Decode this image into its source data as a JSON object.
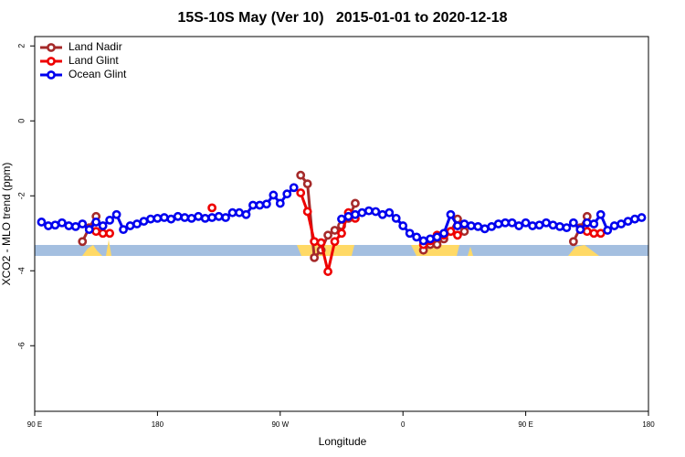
{
  "chart_data": {
    "type": "line",
    "title": "15S-10S May (Ver 10)   2015-01-01 to 2020-12-18",
    "xlabel": "Longitude",
    "ylabel": "XCO2 - MLO trend (ppm)",
    "xlim": [
      90,
      540
    ],
    "ylim": [
      -7.75,
      2.25
    ],
    "xticks": [
      {
        "value": 90,
        "label": "90 E"
      },
      {
        "value": 180,
        "label": "180"
      },
      {
        "value": 270,
        "label": "90 W"
      },
      {
        "value": 360,
        "label": "0"
      },
      {
        "value": 450,
        "label": "90 E"
      },
      {
        "value": 540,
        "label": "180"
      }
    ],
    "yticks": [
      -6,
      -4,
      -2,
      0,
      2
    ],
    "legend": "top-left",
    "x": [
      95,
      100,
      105,
      110,
      115,
      120,
      125,
      130,
      135,
      140,
      145,
      150,
      155,
      160,
      165,
      170,
      175,
      180,
      185,
      190,
      195,
      200,
      205,
      210,
      215,
      220,
      225,
      230,
      235,
      240,
      245,
      250,
      255,
      260,
      265,
      270,
      275,
      280,
      285,
      290,
      295,
      300,
      305,
      310,
      315,
      320,
      325,
      330,
      335,
      340,
      345,
      350,
      355,
      360,
      365,
      370,
      375,
      380,
      385,
      390,
      395,
      400,
      405,
      410,
      415,
      420,
      425,
      430,
      435,
      440,
      445,
      450,
      455,
      460,
      465,
      470,
      475,
      480,
      485,
      490,
      495,
      500,
      505,
      510,
      515,
      520,
      525,
      530,
      535
    ],
    "series": [
      {
        "name": "Land Nadir",
        "color": "#a52a2a",
        "values": [
          null,
          null,
          null,
          null,
          null,
          null,
          -3.22,
          -2.85,
          -2.55,
          null,
          null,
          null,
          null,
          null,
          null,
          null,
          null,
          null,
          null,
          null,
          null,
          null,
          null,
          null,
          null,
          null,
          null,
          null,
          null,
          null,
          null,
          null,
          null,
          null,
          null,
          null,
          null,
          null,
          -1.45,
          -1.68,
          -3.65,
          -3.45,
          -3.05,
          -2.92,
          -2.8,
          -2.6,
          -2.2,
          null,
          null,
          null,
          null,
          null,
          null,
          null,
          null,
          null,
          -3.45,
          -3.3,
          -3.3,
          -3.15,
          -2.95,
          -2.62,
          -2.95,
          null,
          null,
          null,
          null,
          null,
          null,
          null,
          null,
          null,
          null,
          null,
          null,
          null,
          null,
          null,
          -3.22,
          -2.85,
          -2.55,
          null,
          null,
          null,
          null,
          null,
          null,
          null,
          null
        ]
      },
      {
        "name": "Land Glint",
        "color": "#ee0000",
        "values": [
          null,
          null,
          null,
          null,
          null,
          null,
          null,
          null,
          -2.95,
          -3.0,
          -3.0,
          null,
          null,
          null,
          null,
          null,
          null,
          null,
          null,
          null,
          null,
          null,
          null,
          null,
          null,
          -2.32,
          null,
          null,
          null,
          null,
          null,
          null,
          null,
          null,
          null,
          null,
          null,
          null,
          -1.92,
          -2.42,
          -3.22,
          -3.25,
          -4.02,
          -3.22,
          -3.0,
          -2.45,
          -2.6,
          null,
          null,
          null,
          null,
          null,
          null,
          null,
          null,
          null,
          -3.3,
          -3.2,
          -3.05,
          -3.05,
          -2.95,
          -3.05,
          null,
          null,
          null,
          null,
          null,
          null,
          null,
          null,
          null,
          null,
          null,
          null,
          null,
          null,
          null,
          null,
          null,
          -2.9,
          -2.95,
          -3.0,
          -3.0,
          null,
          null,
          null,
          null,
          null,
          null
        ]
      },
      {
        "name": "Ocean Glint",
        "color": "#0000ee",
        "values": [
          -2.7,
          -2.8,
          -2.78,
          -2.72,
          -2.8,
          -2.82,
          -2.75,
          -2.9,
          -2.7,
          -2.8,
          -2.65,
          -2.5,
          -2.9,
          -2.8,
          -2.75,
          -2.68,
          -2.62,
          -2.6,
          -2.58,
          -2.62,
          -2.55,
          -2.58,
          -2.6,
          -2.55,
          -2.6,
          -2.58,
          -2.55,
          -2.58,
          -2.45,
          -2.45,
          -2.5,
          -2.25,
          -2.25,
          -2.22,
          -1.98,
          -2.2,
          -1.95,
          -1.78,
          null,
          null,
          null,
          null,
          null,
          null,
          -2.62,
          -2.55,
          -2.5,
          -2.45,
          -2.4,
          -2.42,
          -2.5,
          -2.45,
          -2.6,
          -2.8,
          -3.0,
          -3.1,
          -3.2,
          -3.15,
          -3.1,
          -3.0,
          -2.5,
          -2.8,
          -2.75,
          -2.8,
          -2.82,
          -2.88,
          -2.82,
          -2.75,
          -2.72,
          -2.72,
          -2.8,
          -2.72,
          -2.8,
          -2.78,
          -2.72,
          -2.78,
          -2.82,
          -2.85,
          -2.72,
          -2.9,
          -2.72,
          -2.75,
          -2.5,
          -2.92,
          -2.8,
          -2.75,
          -2.68,
          -2.62,
          -2.58
        ]
      }
    ]
  }
}
